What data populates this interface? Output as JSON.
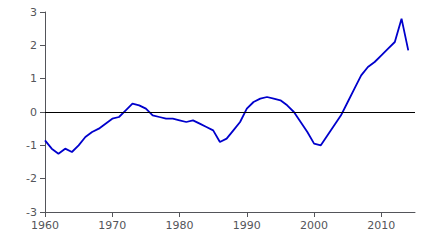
{
  "chart_data": {
    "type": "line",
    "x": [
      1960,
      1961,
      1962,
      1963,
      1964,
      1965,
      1966,
      1967,
      1968,
      1969,
      1970,
      1971,
      1972,
      1973,
      1974,
      1975,
      1976,
      1977,
      1978,
      1979,
      1980,
      1981,
      1982,
      1983,
      1984,
      1985,
      1986,
      1987,
      1988,
      1989,
      1990,
      1991,
      1992,
      1993,
      1994,
      1995,
      1996,
      1997,
      1998,
      1999,
      2000,
      2001,
      2002,
      2003,
      2004,
      2005,
      2006,
      2007,
      2008,
      2009,
      2010,
      2011,
      2012,
      2013,
      2014
    ],
    "values": [
      -0.85,
      -1.1,
      -1.25,
      -1.1,
      -1.2,
      -1.0,
      -0.75,
      -0.6,
      -0.5,
      -0.35,
      -0.2,
      -0.15,
      0.05,
      0.25,
      0.2,
      0.1,
      -0.1,
      -0.15,
      -0.2,
      -0.2,
      -0.25,
      -0.3,
      -0.25,
      -0.35,
      -0.45,
      -0.55,
      -0.9,
      -0.8,
      -0.55,
      -0.3,
      0.1,
      0.3,
      0.4,
      0.45,
      0.4,
      0.35,
      0.2,
      0.0,
      -0.3,
      -0.6,
      -0.95,
      -1.0,
      -0.7,
      -0.4,
      -0.1,
      0.3,
      0.7,
      1.1,
      1.35,
      1.5,
      1.7,
      1.9,
      2.1,
      2.8,
      1.85
    ],
    "color": "#0000cc",
    "xlim": [
      1960,
      2015
    ],
    "ylim": [
      -3,
      3
    ],
    "xticks": [
      1960,
      1970,
      1980,
      1990,
      2000,
      2010
    ],
    "yticks": [
      -3,
      -2,
      -1,
      0,
      1,
      2,
      3
    ],
    "hline": 0,
    "hline_color": "black",
    "grid": false
  }
}
